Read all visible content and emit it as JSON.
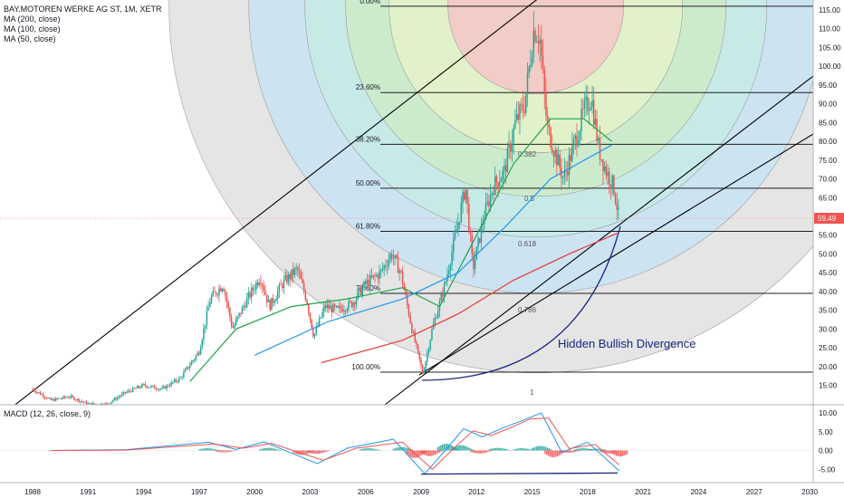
{
  "header": {
    "symbol_line": "BAY.MOTOREN WERKE AG ST, 1M, XETR",
    "ma_lines": [
      "MA (200, close)",
      "MA (100, close)",
      "MA (50, close)"
    ]
  },
  "macd_legend": "MACD (12, 26, close, 9)",
  "colors": {
    "up": "#26a69a",
    "down": "#ef5350",
    "ma50": "#1fa24a",
    "ma100": "#2196f3",
    "ma200": "#e53935",
    "divergence": "#1a237e",
    "last_price": "#ef5350"
  },
  "chart_data": [
    {
      "type": "candlestick",
      "title": "BAY.MOTOREN WERKE AG ST, 1M, XETR",
      "x_ticks": [
        "1988",
        "1991",
        "1994",
        "1997",
        "2000",
        "2003",
        "2006",
        "2009",
        "2012",
        "2015",
        "2018",
        "2021",
        "2024",
        "2027",
        "2030"
      ],
      "y_ticks": [
        "115.00",
        "110.00",
        "105.00",
        "100.00",
        "95.00",
        "90.00",
        "85.00",
        "80.00",
        "75.00",
        "70.00",
        "65.00",
        "60.00",
        "55.00",
        "50.00",
        "45.00",
        "40.00",
        "35.00",
        "30.00",
        "25.00",
        "20.00",
        "15.00"
      ],
      "ylim": [
        12.5,
        117.5
      ],
      "last_price": "59.49",
      "approx_path": [
        [
          1988.0,
          14
        ],
        [
          1989.0,
          11
        ],
        [
          1990.0,
          12
        ],
        [
          1991.0,
          10
        ],
        [
          1992.0,
          10
        ],
        [
          1993.0,
          13
        ],
        [
          1994.0,
          15
        ],
        [
          1995.0,
          14
        ],
        [
          1996.0,
          17
        ],
        [
          1997.0,
          24
        ],
        [
          1997.6,
          38
        ],
        [
          1998.3,
          42
        ],
        [
          1998.8,
          30
        ],
        [
          1999.5,
          37
        ],
        [
          2000.3,
          44
        ],
        [
          2000.8,
          36
        ],
        [
          2001.5,
          42
        ],
        [
          2002.3,
          46
        ],
        [
          2002.8,
          38
        ],
        [
          2003.2,
          28
        ],
        [
          2003.8,
          36
        ],
        [
          2004.5,
          35
        ],
        [
          2005.3,
          37
        ],
        [
          2006.0,
          42
        ],
        [
          2006.8,
          45
        ],
        [
          2007.4,
          50
        ],
        [
          2007.9,
          45
        ],
        [
          2008.5,
          30
        ],
        [
          2009.1,
          18
        ],
        [
          2009.6,
          30
        ],
        [
          2010.3,
          42
        ],
        [
          2010.9,
          56
        ],
        [
          2011.4,
          68
        ],
        [
          2011.8,
          46
        ],
        [
          2012.4,
          60
        ],
        [
          2012.9,
          68
        ],
        [
          2013.5,
          72
        ],
        [
          2014.1,
          85
        ],
        [
          2014.6,
          90
        ],
        [
          2015.1,
          110
        ],
        [
          2015.4,
          108
        ],
        [
          2015.8,
          84
        ],
        [
          2016.3,
          76
        ],
        [
          2016.7,
          70
        ],
        [
          2017.2,
          78
        ],
        [
          2017.8,
          88
        ],
        [
          2018.2,
          92
        ],
        [
          2018.6,
          78
        ],
        [
          2019.0,
          72
        ],
        [
          2019.4,
          68
        ],
        [
          2019.7,
          59.49
        ]
      ],
      "moving_averages": [
        {
          "name": "MA (50, close)",
          "points": [
            [
              1996.5,
              16
            ],
            [
              1999,
              30
            ],
            [
              2002,
              36
            ],
            [
              2005,
              38
            ],
            [
              2008,
              41
            ],
            [
              2010,
              36
            ],
            [
              2012,
              55
            ],
            [
              2014,
              74
            ],
            [
              2016,
              86
            ],
            [
              2017.8,
              86
            ],
            [
              2019.3,
              80
            ]
          ]
        },
        {
          "name": "MA (100, close)",
          "points": [
            [
              2000,
              23
            ],
            [
              2004,
              32
            ],
            [
              2008,
              38
            ],
            [
              2011,
              45
            ],
            [
              2013.5,
              57
            ],
            [
              2016,
              70
            ],
            [
              2019.3,
              79
            ]
          ]
        },
        {
          "name": "MA (200, close)",
          "points": [
            [
              2003.6,
              21
            ],
            [
              2008,
              27
            ],
            [
              2011,
              34
            ],
            [
              2014,
              43
            ],
            [
              2017,
              50
            ],
            [
              2019.6,
              55.5
            ]
          ]
        }
      ]
    },
    {
      "type": "fibonacci",
      "retracement_levels": [
        {
          "label": "0.00%",
          "price": 116.0
        },
        {
          "label": "23.60%",
          "price": 93.0
        },
        {
          "label": "38.20%",
          "price": 79.2
        },
        {
          "label": "50.00%",
          "price": 67.5
        },
        {
          "label": "61.80%",
          "price": 56.0
        },
        {
          "label": "78.60%",
          "price": 39.5
        },
        {
          "label": "100.00%",
          "price": 18.5
        }
      ],
      "circle_labels": [
        "0.382",
        "0.5",
        "0.618",
        "0.786",
        "1"
      ],
      "annotation": "Hidden Bullish Divergence"
    },
    {
      "type": "histogram",
      "title": "MACD (12, 26, close, 9)",
      "y_ticks": [
        "10.00",
        "5.00",
        "0.00",
        "-5.00"
      ],
      "ylim": [
        -9.5,
        11.5
      ],
      "macd_line": [
        [
          1989,
          0
        ],
        [
          1993,
          0.2
        ],
        [
          1997.5,
          2.2
        ],
        [
          1999,
          0.3
        ],
        [
          2000.5,
          2.3
        ],
        [
          2003.4,
          -3.5
        ],
        [
          2005,
          0.6
        ],
        [
          2007.5,
          3.0
        ],
        [
          2009.2,
          -6.2
        ],
        [
          2010.3,
          0
        ],
        [
          2011.3,
          5.8
        ],
        [
          2012.3,
          3.6
        ],
        [
          2013.5,
          6.2
        ],
        [
          2014.5,
          8.0
        ],
        [
          2015.5,
          10.0
        ],
        [
          2016.6,
          -0.5
        ],
        [
          2018,
          2.2
        ],
        [
          2019.7,
          -5.4
        ]
      ],
      "signal_line": [
        [
          1989,
          0
        ],
        [
          1993,
          0.1
        ],
        [
          1997.8,
          1.7
        ],
        [
          1999.4,
          0.6
        ],
        [
          2000.9,
          1.9
        ],
        [
          2003.7,
          -2.6
        ],
        [
          2005.5,
          0.6
        ],
        [
          2008,
          2.2
        ],
        [
          2009.6,
          -5.0
        ],
        [
          2010.7,
          0.3
        ],
        [
          2011.8,
          5.2
        ],
        [
          2012.8,
          4.0
        ],
        [
          2014,
          6.4
        ],
        [
          2014.9,
          8.4
        ],
        [
          2015.9,
          8.6
        ],
        [
          2017,
          0.5
        ],
        [
          2018.4,
          1.6
        ],
        [
          2019.7,
          -3.8
        ]
      ],
      "histogram": [
        [
          1997.3,
          0.6
        ],
        [
          1998.2,
          -0.5
        ],
        [
          2000.6,
          0.7
        ],
        [
          2002.4,
          -1.2
        ],
        [
          2003.2,
          -0.9
        ],
        [
          2006.0,
          0.6
        ],
        [
          2007.8,
          0.9
        ],
        [
          2008.5,
          -2.0
        ],
        [
          2009.3,
          -1.5
        ],
        [
          2010.2,
          1.8
        ],
        [
          2011.0,
          1.4
        ],
        [
          2012.0,
          -0.8
        ],
        [
          2013.0,
          0.7
        ],
        [
          2014.3,
          0.6
        ],
        [
          2015.3,
          1.2
        ],
        [
          2016.0,
          -1.8
        ],
        [
          2016.8,
          -0.6
        ],
        [
          2017.6,
          0.6
        ],
        [
          2018.3,
          0.5
        ],
        [
          2019.0,
          -0.8
        ],
        [
          2019.6,
          -1.6
        ]
      ]
    }
  ]
}
